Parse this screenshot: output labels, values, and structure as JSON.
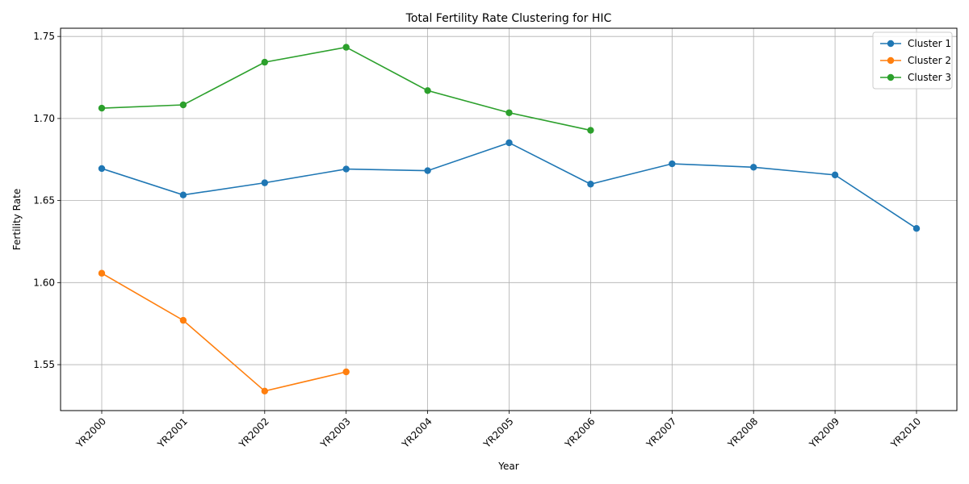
{
  "chart_data": {
    "type": "line",
    "title": "Total Fertility Rate Clustering for HIC",
    "xlabel": "Year",
    "ylabel": "Fertility Rate",
    "categories": [
      "YR2000",
      "YR2001",
      "YR2002",
      "YR2003",
      "YR2004",
      "YR2005",
      "YR2006",
      "YR2007",
      "YR2008",
      "YR2009",
      "YR2010"
    ],
    "ylim": [
      1.522,
      1.755
    ],
    "yticks": [
      1.55,
      1.6,
      1.65,
      1.7,
      1.75
    ],
    "ytick_labels": [
      "1.55",
      "1.60",
      "1.65",
      "1.70",
      "1.75"
    ],
    "grid": true,
    "legend_position": "top-right",
    "series": [
      {
        "name": "Cluster 1",
        "color": "#1f77b4",
        "values": [
          1.6695,
          1.6534,
          1.6608,
          1.6692,
          1.6682,
          1.6852,
          1.66,
          1.6724,
          1.6703,
          1.6656,
          1.633
        ]
      },
      {
        "name": "Cluster 2",
        "color": "#ff7f0e",
        "values": [
          1.6057,
          1.577,
          1.5339,
          1.5456,
          null,
          null,
          null,
          null,
          null,
          null,
          null
        ]
      },
      {
        "name": "Cluster 3",
        "color": "#2ca02c",
        "values": [
          1.7063,
          1.7083,
          1.7343,
          1.7434,
          1.717,
          1.7035,
          1.6928,
          null,
          null,
          null,
          null
        ]
      }
    ]
  }
}
